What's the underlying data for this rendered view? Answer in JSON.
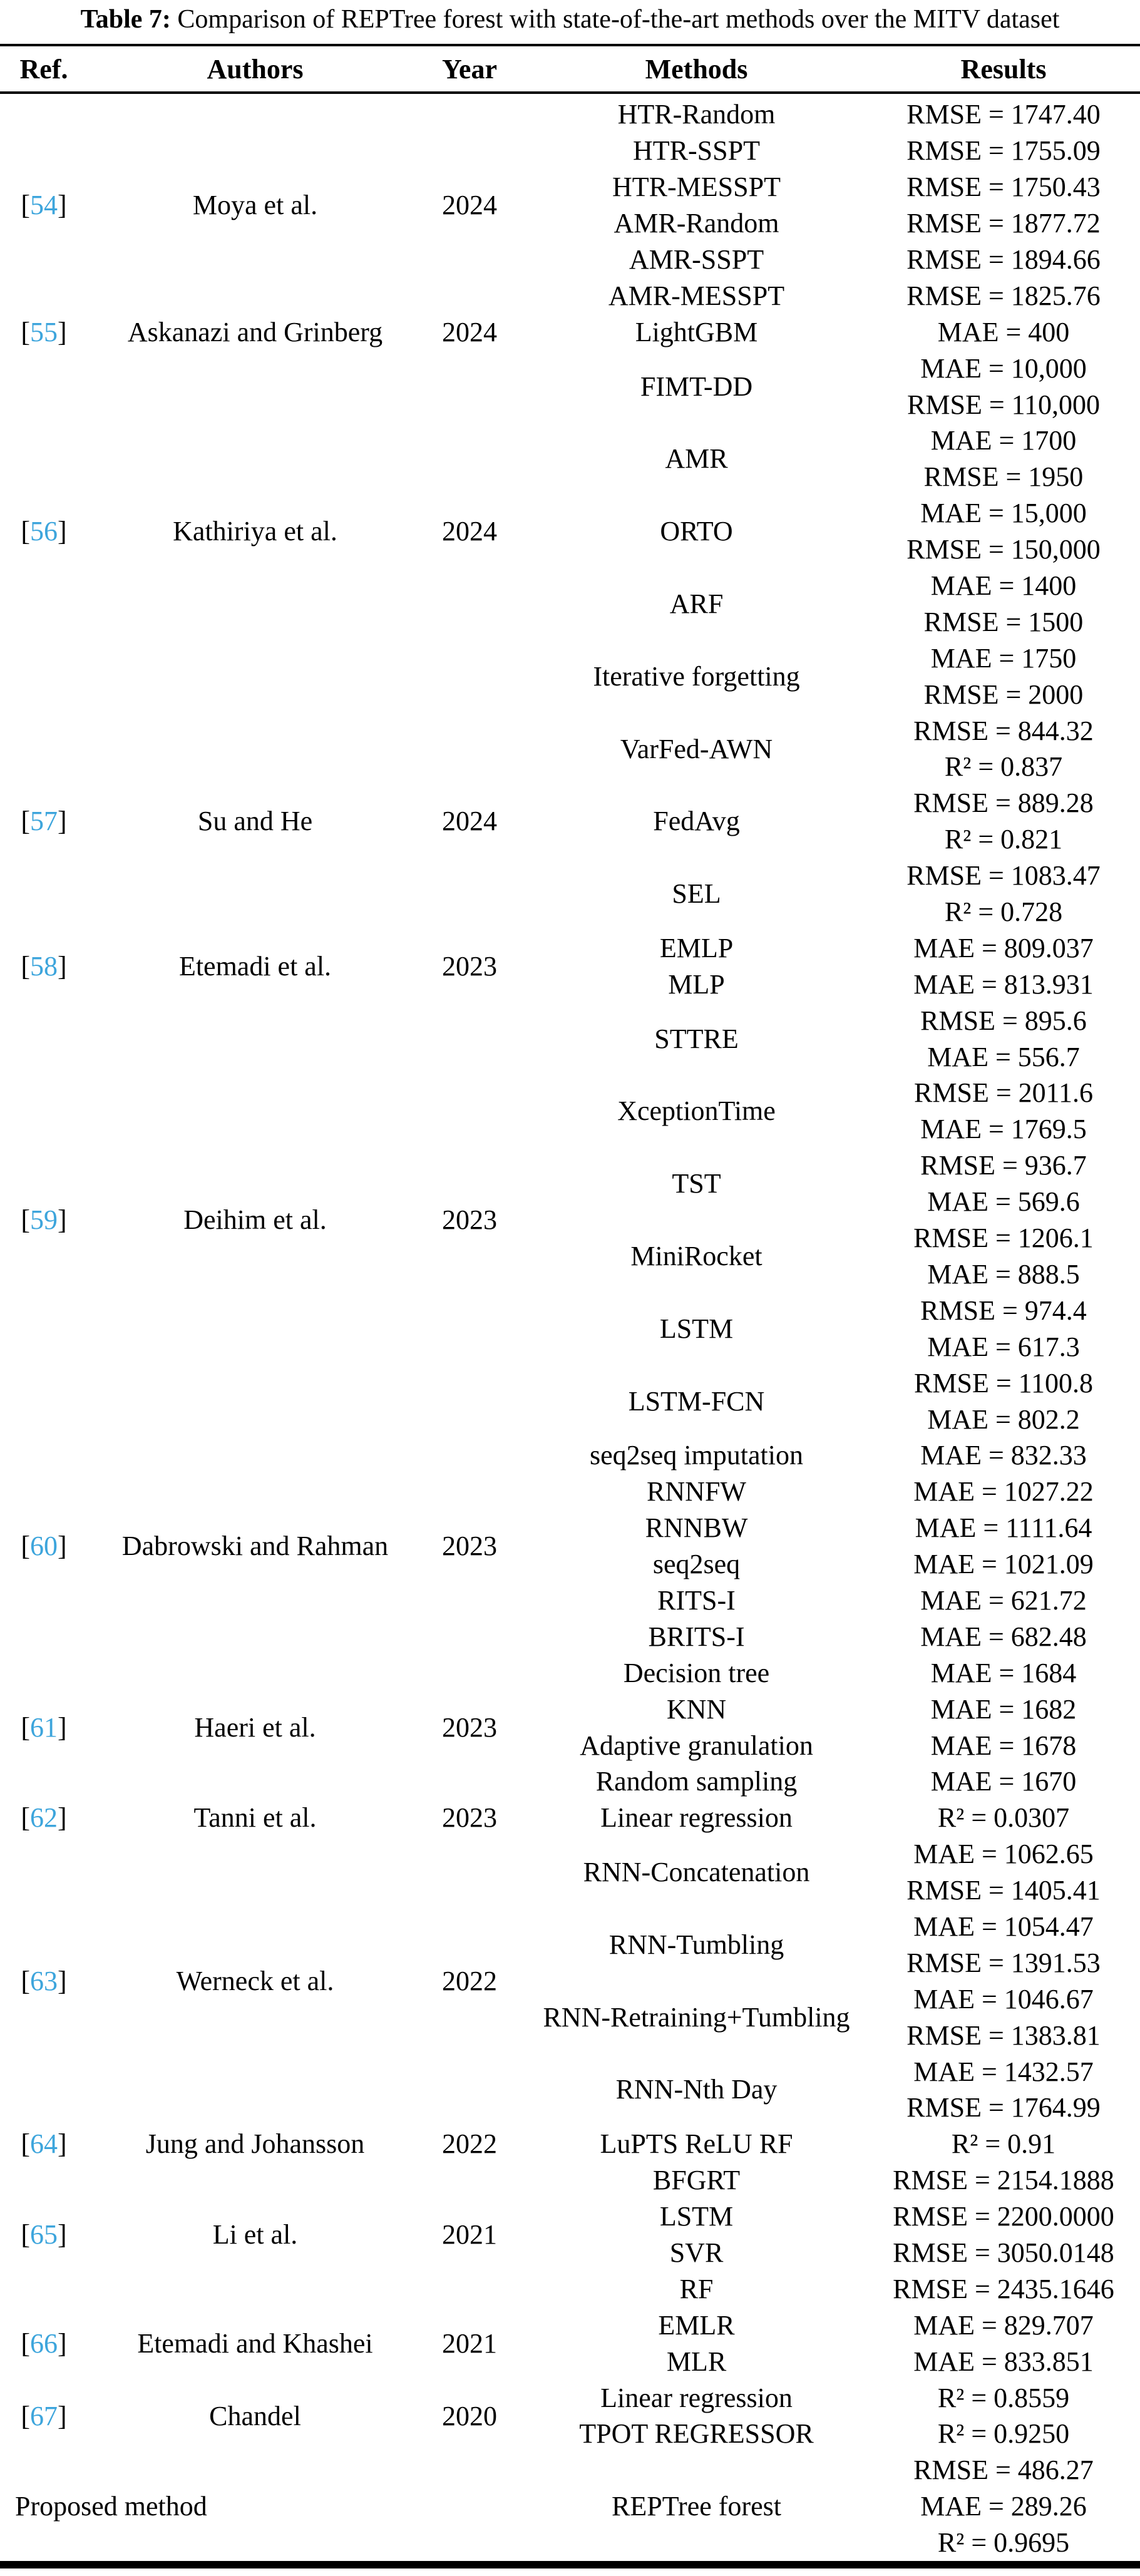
{
  "caption": {
    "label": "Table 7:",
    "text": " Comparison of REPTree forest with state-of-the-art methods over the MITV dataset"
  },
  "columns": [
    "Ref.",
    "Authors",
    "Year",
    "Methods",
    "Results"
  ],
  "accent_color": "#3da5dc",
  "rows": [
    {
      "ref": "54",
      "authors": "Moya et al.",
      "year": "2024",
      "methods": [
        {
          "name": "HTR-Random",
          "results": [
            "RMSE = 1747.40"
          ]
        },
        {
          "name": "HTR-SSPT",
          "results": [
            "RMSE = 1755.09"
          ]
        },
        {
          "name": "HTR-MESSPT",
          "results": [
            "RMSE = 1750.43"
          ]
        },
        {
          "name": "AMR-Random",
          "results": [
            "RMSE = 1877.72"
          ]
        },
        {
          "name": "AMR-SSPT",
          "results": [
            "RMSE = 1894.66"
          ]
        },
        {
          "name": "AMR-MESSPT",
          "results": [
            "RMSE = 1825.76"
          ]
        }
      ]
    },
    {
      "ref": "55",
      "authors": "Askanazi and Grinberg",
      "year": "2024",
      "methods": [
        {
          "name": "LightGBM",
          "results": [
            "MAE = 400"
          ]
        }
      ]
    },
    {
      "ref": "56",
      "authors": "Kathiriya et al.",
      "year": "2024",
      "methods": [
        {
          "name": "FIMT-DD",
          "results": [
            "MAE = 10,000",
            "RMSE = 110,000"
          ]
        },
        {
          "name": "AMR",
          "results": [
            "MAE = 1700",
            "RMSE = 1950"
          ]
        },
        {
          "name": "ORTO",
          "results": [
            "MAE = 15,000",
            "RMSE = 150,000"
          ]
        },
        {
          "name": "ARF",
          "results": [
            "MAE = 1400",
            "RMSE = 1500"
          ]
        },
        {
          "name": "Iterative forgetting",
          "results": [
            "MAE = 1750",
            "RMSE = 2000"
          ]
        }
      ]
    },
    {
      "ref": "57",
      "authors": "Su and He",
      "year": "2024",
      "methods": [
        {
          "name": "VarFed-AWN",
          "results": [
            "RMSE = 844.32",
            "R² = 0.837"
          ]
        },
        {
          "name": "FedAvg",
          "results": [
            "RMSE = 889.28",
            "R² = 0.821"
          ]
        },
        {
          "name": "SEL",
          "results": [
            "RMSE = 1083.47",
            "R² = 0.728"
          ]
        }
      ]
    },
    {
      "ref": "58",
      "authors": "Etemadi et al.",
      "year": "2023",
      "methods": [
        {
          "name": "EMLP",
          "results": [
            "MAE = 809.037"
          ]
        },
        {
          "name": "MLP",
          "results": [
            "MAE = 813.931"
          ]
        }
      ]
    },
    {
      "ref": "59",
      "authors": "Deihim et al.",
      "year": "2023",
      "methods": [
        {
          "name": "STTRE",
          "results": [
            "RMSE = 895.6",
            "MAE = 556.7"
          ]
        },
        {
          "name": "XceptionTime",
          "results": [
            "RMSE = 2011.6",
            "MAE = 1769.5"
          ]
        },
        {
          "name": "TST",
          "results": [
            "RMSE = 936.7",
            "MAE = 569.6"
          ]
        },
        {
          "name": "MiniRocket",
          "results": [
            "RMSE = 1206.1",
            "MAE = 888.5"
          ]
        },
        {
          "name": "LSTM",
          "results": [
            "RMSE = 974.4",
            "MAE = 617.3"
          ]
        },
        {
          "name": "LSTM-FCN",
          "results": [
            "RMSE = 1100.8",
            "MAE = 802.2"
          ]
        }
      ]
    },
    {
      "ref": "60",
      "authors": "Dabrowski and Rahman",
      "year": "2023",
      "methods": [
        {
          "name": "seq2seq imputation",
          "results": [
            "MAE = 832.33"
          ]
        },
        {
          "name": "RNNFW",
          "results": [
            "MAE = 1027.22"
          ]
        },
        {
          "name": "RNNBW",
          "results": [
            "MAE = 1111.64"
          ]
        },
        {
          "name": "seq2seq",
          "results": [
            "MAE = 1021.09"
          ]
        },
        {
          "name": "RITS-I",
          "results": [
            "MAE = 621.72"
          ]
        },
        {
          "name": "BRITS-I",
          "results": [
            "MAE = 682.48"
          ]
        }
      ]
    },
    {
      "ref": "61",
      "authors": "Haeri et al.",
      "year": "2023",
      "methods": [
        {
          "name": "Decision tree",
          "results": [
            "MAE = 1684"
          ]
        },
        {
          "name": "KNN",
          "results": [
            "MAE = 1682"
          ]
        },
        {
          "name": "Adaptive granulation",
          "results": [
            "MAE = 1678"
          ]
        },
        {
          "name": "Random sampling",
          "results": [
            "MAE = 1670"
          ]
        }
      ]
    },
    {
      "ref": "62",
      "authors": "Tanni et al.",
      "year": "2023",
      "methods": [
        {
          "name": "Linear regression",
          "results": [
            "R² = 0.0307"
          ]
        }
      ]
    },
    {
      "ref": "63",
      "authors": "Werneck et al.",
      "year": "2022",
      "methods": [
        {
          "name": "RNN-Concatenation",
          "results": [
            "MAE = 1062.65",
            "RMSE = 1405.41"
          ]
        },
        {
          "name": "RNN-Tumbling",
          "results": [
            "MAE = 1054.47",
            "RMSE = 1391.53"
          ]
        },
        {
          "name": "RNN-Retraining+Tumbling",
          "results": [
            "MAE = 1046.67",
            "RMSE = 1383.81"
          ]
        },
        {
          "name": "RNN-Nth Day",
          "results": [
            "MAE = 1432.57",
            "RMSE = 1764.99"
          ]
        }
      ]
    },
    {
      "ref": "64",
      "authors": "Jung and Johansson",
      "year": "2022",
      "methods": [
        {
          "name": "LuPTS ReLU RF",
          "results": [
            "R² = 0.91"
          ]
        }
      ]
    },
    {
      "ref": "65",
      "authors": "Li et al.",
      "year": "2021",
      "methods": [
        {
          "name": "BFGRT",
          "results": [
            "RMSE = 2154.1888"
          ]
        },
        {
          "name": "LSTM",
          "results": [
            "RMSE = 2200.0000"
          ]
        },
        {
          "name": "SVR",
          "results": [
            "RMSE = 3050.0148"
          ]
        },
        {
          "name": "RF",
          "results": [
            "RMSE = 2435.1646"
          ]
        }
      ]
    },
    {
      "ref": "66",
      "authors": "Etemadi and Khashei",
      "year": "2021",
      "methods": [
        {
          "name": "EMLR",
          "results": [
            "MAE = 829.707"
          ]
        },
        {
          "name": "MLR",
          "results": [
            "MAE = 833.851"
          ]
        }
      ]
    },
    {
      "ref": "67",
      "authors": "Chandel",
      "year": "2020",
      "methods": [
        {
          "name": "Linear regression",
          "results": [
            "R² = 0.8559"
          ]
        },
        {
          "name": "TPOT REGRESSOR",
          "results": [
            "R² = 0.9250"
          ]
        }
      ]
    },
    {
      "ref": null,
      "authors": "Proposed method",
      "year": "",
      "methods": [
        {
          "name": "REPTree forest",
          "results": [
            "RMSE = 486.27",
            "MAE = 289.26",
            "R² = 0.9695"
          ]
        }
      ]
    }
  ]
}
